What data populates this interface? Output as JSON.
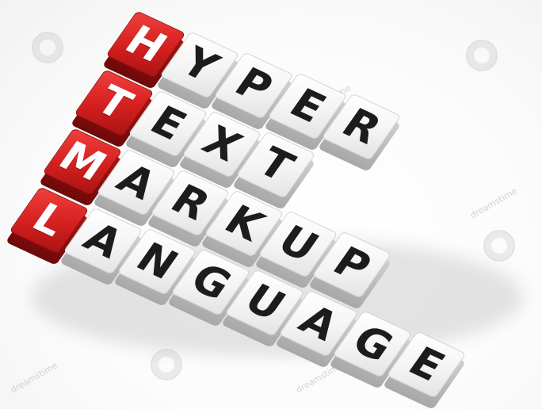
{
  "rows": [
    {
      "initial": "H",
      "rest": [
        "Y",
        "P",
        "E",
        "R"
      ]
    },
    {
      "initial": "T",
      "rest": [
        "E",
        "X",
        "T"
      ]
    },
    {
      "initial": "M",
      "rest": [
        "A",
        "R",
        "K",
        "U",
        "P"
      ]
    },
    {
      "initial": "L",
      "rest": [
        "A",
        "N",
        "G",
        "U",
        "A",
        "G",
        "E"
      ]
    }
  ],
  "watermark": "dreamstime",
  "colors": {
    "red_cube": "#d41f1f",
    "white_cube": "#f4f4f4",
    "letter_dark": "#1c1c1c",
    "letter_light": "#ffffff"
  }
}
